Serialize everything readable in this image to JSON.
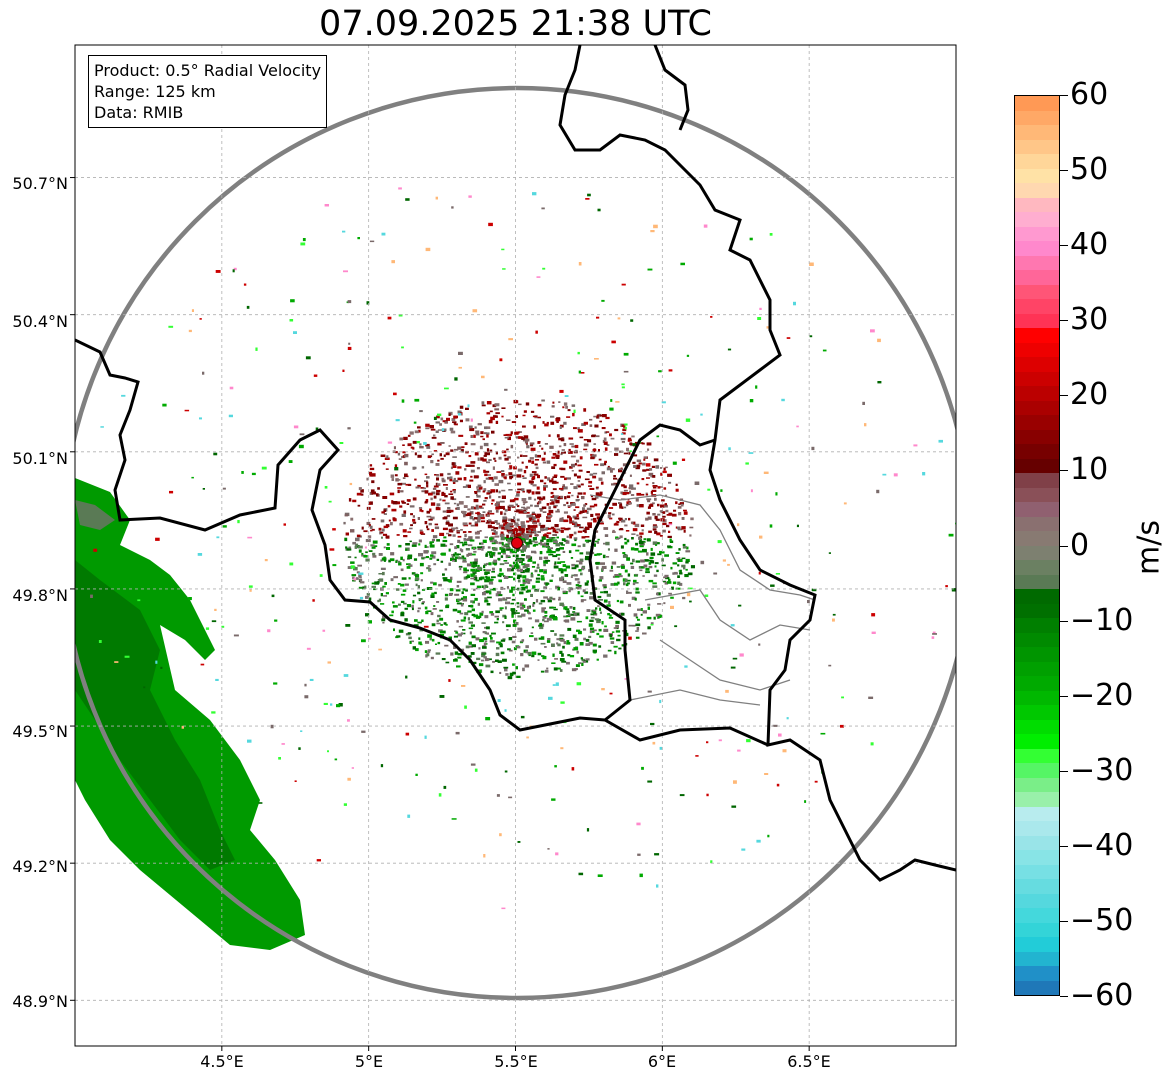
{
  "title": "07.09.2025 21:38 UTC",
  "info": {
    "product": "Product: 0.5° Radial Velocity",
    "range": "Range: 125 km",
    "data": "Data: RMIB"
  },
  "map": {
    "lon_range": [
      4.0,
      7.0
    ],
    "lat_range": [
      48.8,
      50.99
    ],
    "radar_site": {
      "lon": 5.505,
      "lat": 49.915
    },
    "lat_ticks": [
      {
        "value": 50.7,
        "label": "50.7°N"
      },
      {
        "value": 50.4,
        "label": "50.4°N"
      },
      {
        "value": 50.1,
        "label": "50.1°N"
      },
      {
        "value": 49.8,
        "label": "49.8°N"
      },
      {
        "value": 49.5,
        "label": "49.5°N"
      },
      {
        "value": 49.2,
        "label": "49.2°N"
      },
      {
        "value": 48.9,
        "label": "48.9°N"
      }
    ],
    "lon_ticks": [
      {
        "value": 4.5,
        "label": "4.5°E"
      },
      {
        "value": 5.0,
        "label": "5°E"
      },
      {
        "value": 5.5,
        "label": "5.5°E"
      },
      {
        "value": 6.0,
        "label": "6°E"
      },
      {
        "value": 6.5,
        "label": "6.5°E"
      }
    ],
    "colors": {
      "border": "#000000",
      "range_ring": "#808080",
      "grid": "#b0b0b0",
      "site_marker": "#e3000f",
      "rain_green_dark": "#006600",
      "rain_green": "#00a000"
    }
  },
  "colorbar": {
    "unit": "m/s",
    "vmin": -60,
    "vmax": 60,
    "ticks": [
      {
        "value": 60,
        "label": "60"
      },
      {
        "value": 50,
        "label": "50"
      },
      {
        "value": 40,
        "label": "40"
      },
      {
        "value": 30,
        "label": "30"
      },
      {
        "value": 20,
        "label": "20"
      },
      {
        "value": 10,
        "label": "10"
      },
      {
        "value": 0,
        "label": "0"
      },
      {
        "value": -10,
        "label": "−10"
      },
      {
        "value": -20,
        "label": "−20"
      },
      {
        "value": -30,
        "label": "−30"
      },
      {
        "value": -40,
        "label": "−40"
      },
      {
        "value": -50,
        "label": "−50"
      },
      {
        "value": -60,
        "label": "−60"
      }
    ],
    "segments": [
      "#ff9955",
      "#ffa866",
      "#ffb877",
      "#ffc688",
      "#ffd699",
      "#ffe2a6",
      "#ffd8b0",
      "#ffb8c0",
      "#ffaed0",
      "#ff99d0",
      "#ff88cc",
      "#ff77b0",
      "#ff6699",
      "#ff5577",
      "#ff4466",
      "#ff3355",
      "#ff0000",
      "#ee0000",
      "#dd0000",
      "#cc0000",
      "#bb0000",
      "#aa0000",
      "#990000",
      "#880000",
      "#770000",
      "#660000",
      "#804048",
      "#8a5058",
      "#906070",
      "#8a7070",
      "#887a72",
      "#7d8070",
      "#6b8062",
      "#5a7a55",
      "#006a00",
      "#007000",
      "#007f00",
      "#008a00",
      "#009500",
      "#00a000",
      "#00aa00",
      "#00b800",
      "#00c800",
      "#00dd00",
      "#00ee00",
      "#33ff33",
      "#55f565",
      "#7aee88",
      "#99f0aa",
      "#b8ecee",
      "#aae8ec",
      "#99e4e8",
      "#88e4e6",
      "#77e0e4",
      "#66dce0",
      "#55d8de",
      "#44d8dc",
      "#33d4d8",
      "#22ccd8",
      "#22b4d0",
      "#2090c8",
      "#1f78b8"
    ]
  }
}
